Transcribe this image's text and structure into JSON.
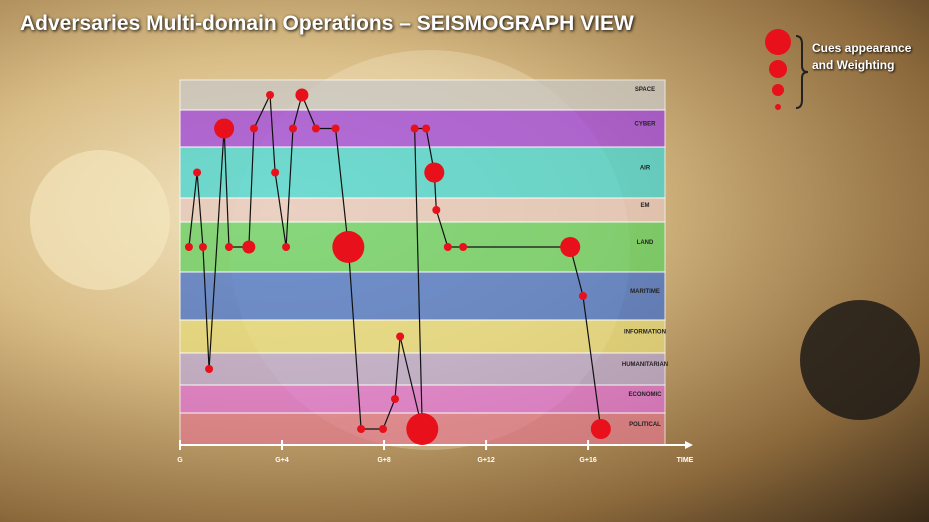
{
  "chart_data": {
    "type": "line",
    "title": "Adversaries Multi-domain Operations – SEISMOGRAPH VIEW",
    "legend_label": "Cues appearance and Weighting",
    "domains": [
      "SPACE",
      "CYBER",
      "AIR",
      "EM",
      "LAND",
      "MARITIME",
      "INFORMATION",
      "HUMANITARIAN",
      "ECONOMIC",
      "POLITICAL"
    ],
    "x_label": "TIME",
    "xlim": [
      0,
      19.8
    ],
    "xticks": [
      {
        "value": 0,
        "label": "G"
      },
      {
        "value": 4,
        "label": "G+4"
      },
      {
        "value": 8,
        "label": "G+8"
      },
      {
        "value": 12,
        "label": "G+12"
      },
      {
        "value": 16,
        "label": "G+16"
      }
    ],
    "color": "#e8101a",
    "x": [
      0.35,
      0.67,
      0.9,
      1.14,
      1.73,
      1.92,
      2.7,
      2.9,
      3.53,
      3.73,
      4.16,
      4.43,
      4.78,
      5.33,
      6.1,
      6.6,
      7.1,
      7.96,
      8.43,
      8.63,
      9.5,
      9.2,
      9.65,
      9.97,
      10.05,
      10.5,
      11.1,
      15.3,
      15.8,
      16.5
    ],
    "domain": [
      "LAND",
      "AIR",
      "LAND",
      "HUMANITARIAN",
      "CYBER",
      "LAND",
      "LAND",
      "CYBER",
      "SPACE",
      "AIR",
      "LAND",
      "CYBER",
      "SPACE",
      "CYBER",
      "CYBER",
      "LAND",
      "POLITICAL",
      "POLITICAL",
      "ECONOMIC",
      "INFORMATION",
      "POLITICAL",
      "CYBER",
      "CYBER",
      "AIR",
      "EM",
      "LAND",
      "LAND",
      "LAND",
      "MARITIME",
      "POLITICAL"
    ],
    "size": [
      1,
      1,
      1,
      1,
      3,
      1,
      2,
      1,
      1,
      1,
      1,
      1,
      2,
      1,
      1,
      4,
      1,
      1,
      1,
      1,
      4,
      1,
      1,
      3,
      1,
      1,
      1,
      3,
      1,
      3
    ]
  }
}
